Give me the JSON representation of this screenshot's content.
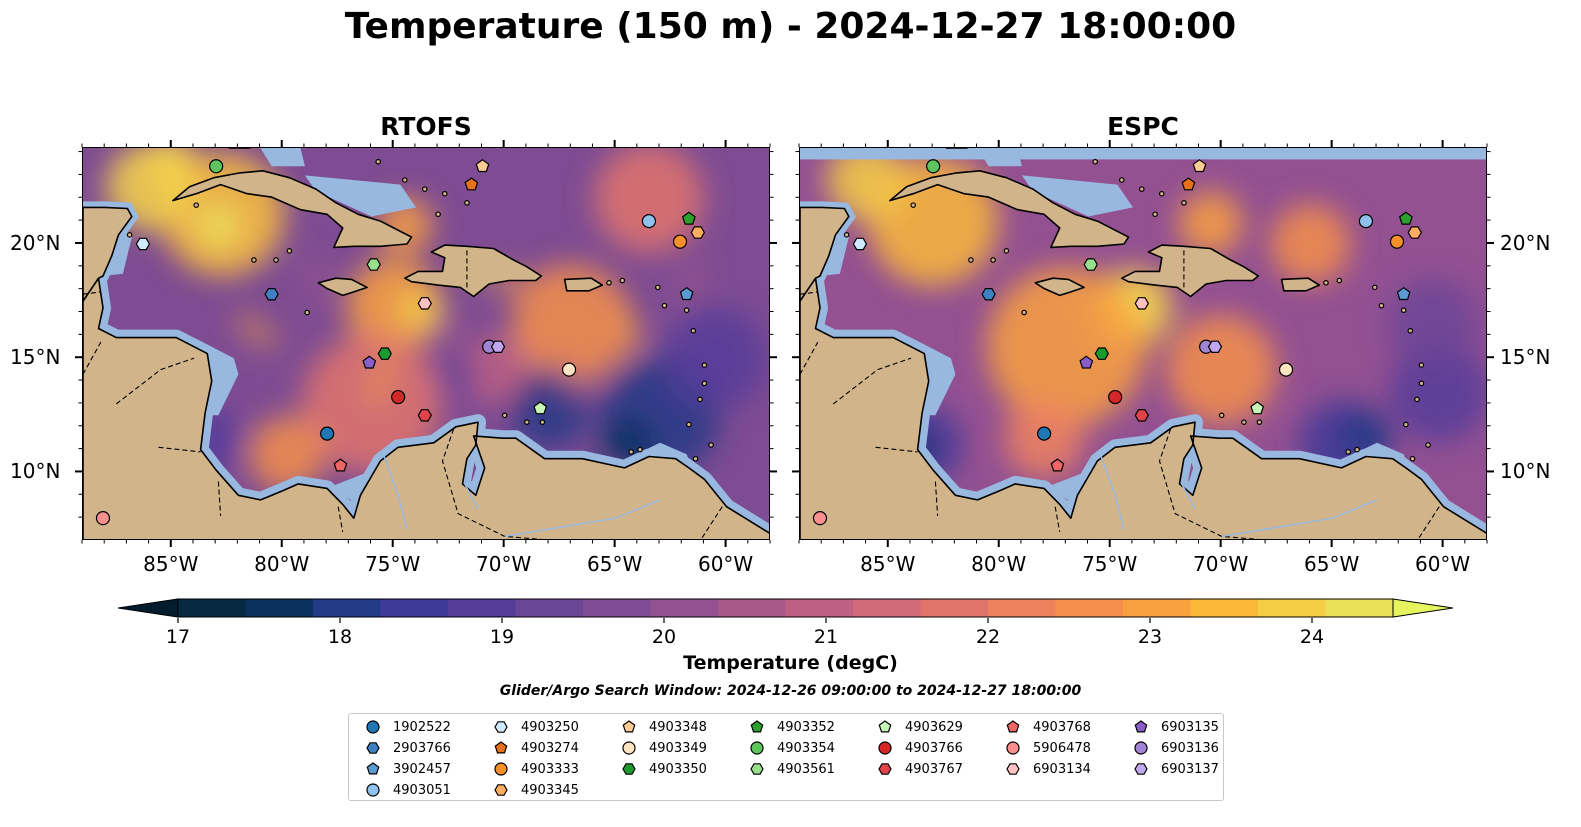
{
  "title": "Temperature (150 m) - 2024-12-27 18:00:00",
  "panels": [
    {
      "title": "RTOFS",
      "variant": "rtofs"
    },
    {
      "title": "ESPC",
      "variant": "espc"
    }
  ],
  "axes": {
    "lon_range": [
      -89,
      -58
    ],
    "lat_range": [
      7,
      24.2
    ],
    "x_ticks": [
      "85°W",
      "80°W",
      "75°W",
      "70°W",
      "65°W",
      "60°W"
    ],
    "x_tick_values": [
      -85,
      -80,
      -75,
      -70,
      -65,
      -60
    ],
    "y_ticks": [
      "20°N",
      "15°N",
      "10°N"
    ],
    "y_tick_values": [
      20,
      15,
      10
    ]
  },
  "colorbar": {
    "label": "Temperature (degC)",
    "ticks": [
      "17",
      "18",
      "19",
      "20",
      "21",
      "22",
      "23",
      "24"
    ],
    "tick_values": [
      17,
      18,
      19,
      20,
      21,
      22,
      23,
      24
    ],
    "range": [
      17,
      24.5
    ],
    "colors": [
      "#062a42",
      "#0c3160",
      "#233a86",
      "#3e3a98",
      "#563d9a",
      "#6b4596",
      "#7e4c93",
      "#935192",
      "#a9588b",
      "#bd6082",
      "#d06a78",
      "#e0746d",
      "#ee825f",
      "#f58f4b",
      "#f9a13e",
      "#fbb83b",
      "#f6cd47",
      "#ece059"
    ],
    "under_color": "#031c2e",
    "over_color": "#e6f45d"
  },
  "colors": {
    "land": "#d2b48b",
    "shallow": "#98b8e0",
    "deep": "#02243a"
  },
  "search_window": "Glider/Argo Search Window: 2024-12-26 09:00:00 to 2024-12-27 18:00:00",
  "floats": [
    {
      "id": "1902522",
      "marker": "circle",
      "color": "#1f77b4"
    },
    {
      "id": "2903766",
      "marker": "hexagon",
      "color": "#3f80c2"
    },
    {
      "id": "3902457",
      "marker": "pentagon",
      "color": "#5b9bd5"
    },
    {
      "id": "4903051",
      "marker": "circle",
      "color": "#8fc3ee"
    },
    {
      "id": "4903250",
      "marker": "hexagon",
      "color": "#d0ebff"
    },
    {
      "id": "4903274",
      "marker": "pentagon",
      "color": "#e8711c"
    },
    {
      "id": "4903333",
      "marker": "circle",
      "color": "#f5912a"
    },
    {
      "id": "4903345",
      "marker": "hexagon",
      "color": "#ffad60"
    },
    {
      "id": "4903348",
      "marker": "pentagon",
      "color": "#ffcc95"
    },
    {
      "id": "4903349",
      "marker": "circle",
      "color": "#ffe3c2"
    },
    {
      "id": "4903350",
      "marker": "hexagon",
      "color": "#1e9b2e"
    },
    {
      "id": "4903352",
      "marker": "pentagon",
      "color": "#2ca02c"
    },
    {
      "id": "4903354",
      "marker": "circle",
      "color": "#5fc35f"
    },
    {
      "id": "4903561",
      "marker": "hexagon",
      "color": "#98df8a"
    },
    {
      "id": "4903629",
      "marker": "pentagon",
      "color": "#c6f5b6"
    },
    {
      "id": "4903766",
      "marker": "circle",
      "color": "#d62728"
    },
    {
      "id": "4903767",
      "marker": "hexagon",
      "color": "#e2424a"
    },
    {
      "id": "4903768",
      "marker": "pentagon",
      "color": "#f06565"
    },
    {
      "id": "5906478",
      "marker": "circle",
      "color": "#f7908f"
    },
    {
      "id": "6903134",
      "marker": "hexagon",
      "color": "#ffc2c0"
    },
    {
      "id": "6903135",
      "marker": "pentagon",
      "color": "#8a5ec9"
    },
    {
      "id": "6903136",
      "marker": "circle",
      "color": "#a283d6"
    },
    {
      "id": "6903137",
      "marker": "hexagon",
      "color": "#c1a6f0"
    }
  ],
  "float_positions": [
    {
      "id": "4903354",
      "lon": -83,
      "lat": 23.4
    },
    {
      "id": "4903250",
      "lon": -86.3,
      "lat": 20
    },
    {
      "id": "2903766",
      "lon": -80.5,
      "lat": 17.8
    },
    {
      "id": "4903561",
      "lon": -75.9,
      "lat": 19.1
    },
    {
      "id": "6903134",
      "lon": -73.6,
      "lat": 17.4
    },
    {
      "id": "4903274",
      "lon": -71.5,
      "lat": 22.6
    },
    {
      "id": "4903348",
      "lon": -71,
      "lat": 23.4
    },
    {
      "id": "4903051",
      "lon": -63.5,
      "lat": 21
    },
    {
      "id": "4903352",
      "lon": -61.7,
      "lat": 21.1
    },
    {
      "id": "4903333",
      "lon": -62.1,
      "lat": 20.1
    },
    {
      "id": "4903345",
      "lon": -61.3,
      "lat": 20.5
    },
    {
      "id": "3902457",
      "lon": -61.8,
      "lat": 17.8
    },
    {
      "id": "6903135",
      "lon": -76.1,
      "lat": 14.8
    },
    {
      "id": "4903350",
      "lon": -75.4,
      "lat": 15.2
    },
    {
      "id": "6903136",
      "lon": -70.7,
      "lat": 15.5
    },
    {
      "id": "6903137",
      "lon": -70.3,
      "lat": 15.5
    },
    {
      "id": "4903349",
      "lon": -67.1,
      "lat": 14.5
    },
    {
      "id": "4903629",
      "lon": -68.4,
      "lat": 12.8
    },
    {
      "id": "4903766",
      "lon": -74.8,
      "lat": 13.3
    },
    {
      "id": "4903767",
      "lon": -73.6,
      "lat": 12.5
    },
    {
      "id": "1902522",
      "lon": -78,
      "lat": 11.7
    },
    {
      "id": "4903768",
      "lon": -77.4,
      "lat": 10.3
    },
    {
      "id": "5906478",
      "lon": -88.1,
      "lat": 8
    }
  ]
}
